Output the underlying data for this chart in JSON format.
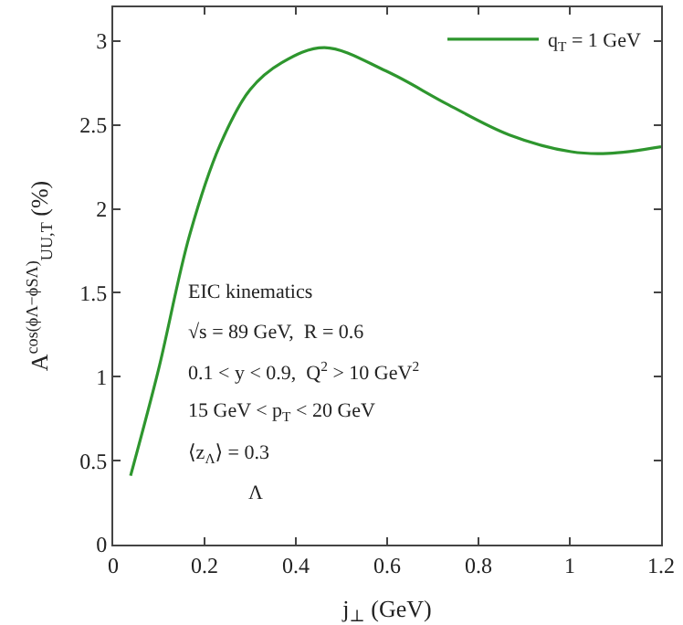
{
  "chart_data": {
    "type": "line",
    "xlabel": "j$_{⊥}$ (GeV)",
    "ylabel": "A$^{cos(ϕΛ−ϕSΛ)}$$_{UU,T}$ (%)",
    "x": [
      0.038,
      0.099,
      0.167,
      0.234,
      0.3,
      0.369,
      0.463,
      0.598,
      0.734,
      0.868,
      1.003,
      1.084,
      1.2
    ],
    "series": [
      {
        "name": "q$_{T}$ = 1 GeV",
        "color": "#2e962e",
        "values": [
          0.41,
          1.04,
          1.84,
          2.38,
          2.71,
          2.87,
          2.96,
          2.82,
          2.62,
          2.44,
          2.34,
          2.33,
          2.37
        ]
      }
    ],
    "xlim": [
      0,
      1.2
    ],
    "xticks": [
      0,
      0.2,
      0.4,
      0.6,
      0.8,
      1,
      1.2
    ],
    "ylim": [
      0,
      3.2
    ],
    "yticks": [
      0,
      0.5,
      1,
      1.5,
      2,
      2.5,
      3
    ],
    "grid": false,
    "legend": "top right",
    "marker": "none",
    "line_style": "solid",
    "annotations": [
      "EIC kinematics",
      "√s = 89 GeV,  R = 0.6",
      "0.1 < y < 0.9,  Q$^{2}$ > 10 GeV$^{2}$",
      "15 GeV < p$_{T}$ < 20 GeV",
      "⟨z$_{Λ}$⟩ = 0.3",
      "Λ"
    ]
  }
}
